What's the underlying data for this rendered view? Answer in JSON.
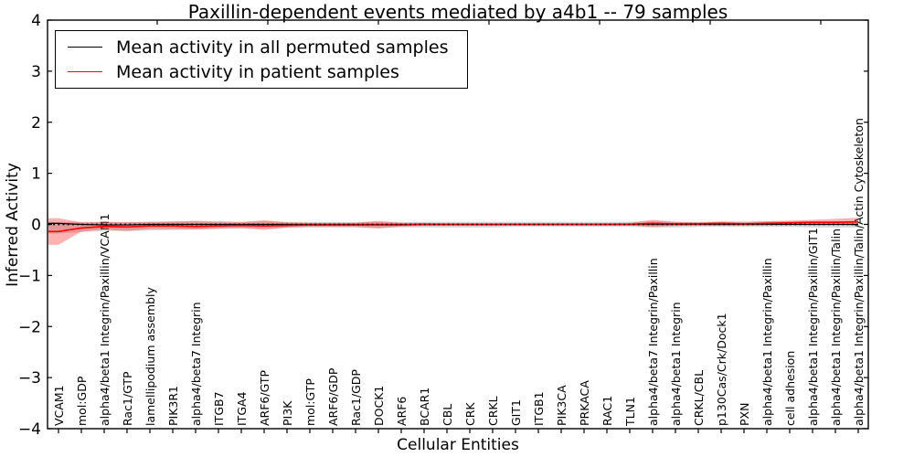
{
  "chart_data": {
    "type": "line",
    "title": "Paxillin-dependent events mediated by a4b1 -- 79 samples",
    "xlabel": "Cellular Entities",
    "ylabel": "Inferred Activity",
    "ylim": [
      -4,
      4
    ],
    "ytick_values": [
      4,
      3,
      2,
      1,
      0,
      -1,
      -2,
      -3,
      -4
    ],
    "ytick_labels": [
      "4",
      "3",
      "2",
      "1",
      "0",
      "−1",
      "−2",
      "−3",
      "−4"
    ],
    "grid": false,
    "legend_position": "upper left",
    "categories": [
      "VCAM1",
      "mol:GDP",
      "alpha4/beta1 Integrin/Paxillin/VCAM1",
      "Rac1/GTP",
      "lamellipodium assembly",
      "PIK3R1",
      "alpha4/beta7 Integrin",
      "ITGB7",
      "ITGA4",
      "ARF6/GTP",
      "PI3K",
      "mol:GTP",
      "ARF6/GDP",
      "Rac1/GDP",
      "DOCK1",
      "ARF6",
      "BCAR1",
      "CBL",
      "CRK",
      "CRKL",
      "GIT1",
      "ITGB1",
      "PIK3CA",
      "PRKACA",
      "RAC1",
      "TLN1",
      "alpha4/beta7 Integrin/Paxillin",
      "alpha4/beta1 Integrin",
      "CRKL/CBL",
      "p130Cas/Crk/Dock1",
      "PXN",
      "alpha4/beta1 Integrin/Paxillin",
      "cell adhesion",
      "alpha4/beta1 Integrin/Paxillin/GIT1",
      "alpha4/beta1 Integrin/Paxillin/Talin",
      "alpha4/beta1 Integrin/Paxillin/Talin/Actin Cytoskeleton"
    ],
    "series": [
      {
        "name": "Mean activity in all permuted samples",
        "color": "#000000",
        "values": [
          0.02,
          0.0,
          -0.01,
          -0.01,
          0.0,
          0.0,
          0.0,
          0.0,
          0.0,
          0.0,
          0.0,
          0.0,
          0.0,
          0.0,
          0.0,
          0.0,
          0.0,
          0.0,
          0.0,
          0.0,
          0.0,
          0.0,
          0.0,
          0.0,
          0.0,
          0.0,
          0.0,
          0.0,
          0.0,
          0.0,
          0.0,
          0.0,
          0.0,
          0.0,
          0.0,
          0.0
        ]
      },
      {
        "name": "Mean activity in patient samples",
        "color": "#ff0000",
        "values": [
          -0.14,
          -0.07,
          -0.04,
          -0.05,
          -0.03,
          -0.03,
          -0.04,
          -0.03,
          -0.02,
          -0.03,
          -0.02,
          -0.01,
          -0.01,
          -0.01,
          -0.01,
          -0.01,
          0.0,
          0.0,
          0.0,
          0.0,
          0.0,
          0.0,
          0.0,
          0.0,
          0.0,
          0.0,
          0.02,
          0.01,
          0.01,
          0.02,
          0.01,
          0.02,
          0.03,
          0.04,
          0.04,
          0.05
        ]
      }
    ],
    "bands": [
      {
        "name": "permuted-samples-range",
        "color": "#999999",
        "opacity": 0.38,
        "upper": [
          0.05,
          0.05,
          0.05,
          0.05,
          0.05,
          0.05,
          0.06,
          0.04,
          0.04,
          0.06,
          0.05,
          0.05,
          0.05,
          0.05,
          0.05,
          0.05,
          0.05,
          0.05,
          0.05,
          0.05,
          0.05,
          0.05,
          0.05,
          0.05,
          0.05,
          0.05,
          0.06,
          0.05,
          0.05,
          0.06,
          0.06,
          0.06,
          0.07,
          0.06,
          0.06,
          0.06
        ],
        "lower": [
          -0.18,
          -0.15,
          -0.13,
          -0.13,
          -0.12,
          -0.11,
          -0.1,
          -0.09,
          -0.08,
          -0.08,
          -0.07,
          -0.06,
          -0.06,
          -0.06,
          -0.07,
          -0.06,
          -0.06,
          -0.06,
          -0.06,
          -0.06,
          -0.05,
          -0.05,
          -0.05,
          -0.05,
          -0.05,
          -0.05,
          -0.06,
          -0.06,
          -0.05,
          -0.05,
          -0.05,
          -0.05,
          -0.05,
          -0.06,
          -0.06,
          -0.06
        ]
      },
      {
        "name": "patient-samples-range",
        "color": "#ff0000",
        "opacity": 0.3,
        "upper": [
          0.12,
          0.04,
          0.05,
          0.04,
          0.05,
          0.06,
          0.07,
          0.06,
          0.05,
          0.08,
          0.04,
          0.03,
          0.03,
          0.03,
          0.07,
          0.03,
          0.03,
          0.02,
          0.02,
          0.02,
          0.02,
          0.02,
          0.02,
          0.02,
          0.02,
          0.03,
          0.09,
          0.05,
          0.04,
          0.05,
          0.04,
          0.06,
          0.07,
          0.09,
          0.11,
          0.13
        ],
        "lower": [
          -0.4,
          -0.14,
          -0.1,
          -0.13,
          -0.09,
          -0.09,
          -0.1,
          -0.08,
          -0.07,
          -0.11,
          -0.06,
          -0.05,
          -0.05,
          -0.05,
          -0.08,
          -0.04,
          -0.03,
          -0.03,
          -0.03,
          -0.03,
          -0.02,
          -0.02,
          -0.02,
          -0.02,
          -0.02,
          -0.02,
          -0.05,
          -0.03,
          -0.02,
          -0.02,
          -0.02,
          -0.01,
          -0.01,
          0.0,
          0.0,
          -0.02
        ]
      }
    ],
    "zero_line_style": "dotted",
    "layout": {
      "plot_left": 52,
      "plot_top": 22,
      "plot_right": 950,
      "plot_bottom": 469,
      "x_first": 64,
      "x_step": 25,
      "band_x_start": 53,
      "top_tick_x": [
        172,
        293,
        414,
        535,
        656,
        777,
        898
      ],
      "tick_len": 5,
      "xtick_font_size": 12.5,
      "ytick_font_size": 17
    }
  }
}
